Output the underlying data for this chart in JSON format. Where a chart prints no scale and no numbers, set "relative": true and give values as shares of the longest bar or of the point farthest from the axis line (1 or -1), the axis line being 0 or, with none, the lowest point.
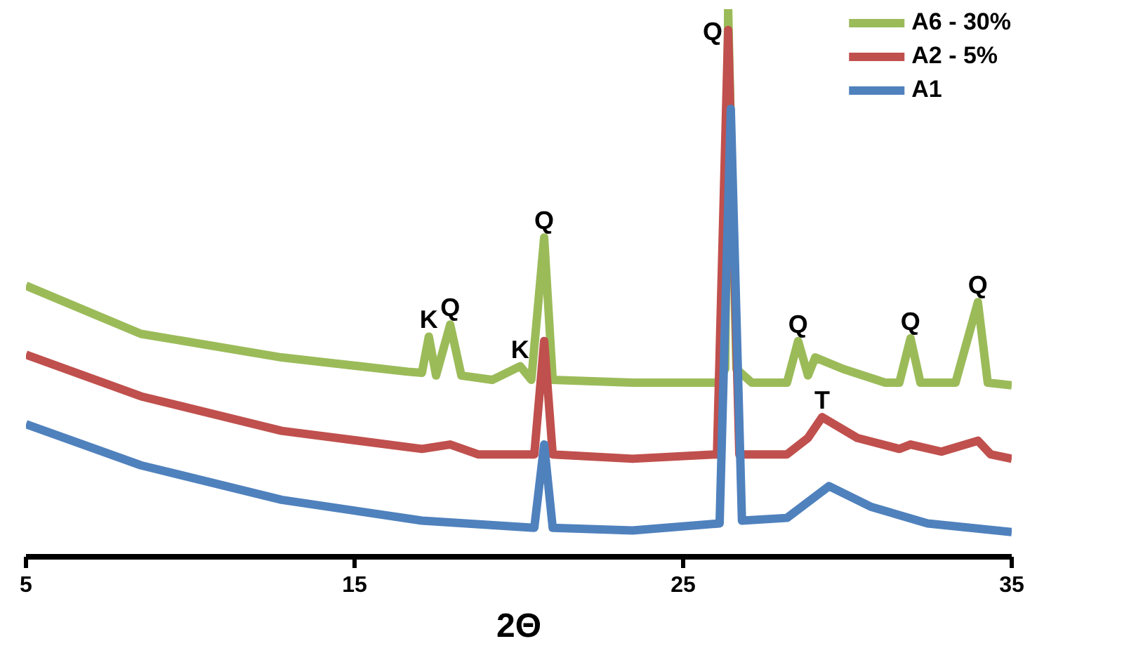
{
  "chart_data": {
    "type": "line",
    "relative": true,
    "xlabel": "2Θ",
    "xlim": [
      5,
      35
    ],
    "xticks": [
      5,
      15,
      25,
      35
    ],
    "grid": false,
    "legend": "top right",
    "marker": "none",
    "line_style": "solid",
    "series": [
      {
        "name": "A6 - 30%",
        "color": "#9bbb59",
        "x": [
          5,
          8.5,
          12.78,
          16.62,
          17.05,
          17.26,
          17.48,
          17.91,
          18.25,
          19.19,
          20.04,
          20.38,
          20.77,
          21.03,
          23.46,
          26.03,
          26.28,
          26.37,
          26.62,
          27.09,
          28.16,
          28.5,
          28.8,
          29.02,
          29.87,
          31.15,
          31.58,
          31.92,
          32.22,
          33.29,
          33.97,
          34.27,
          35
        ],
        "values": [
          0.495,
          0.407,
          0.364,
          0.338,
          0.336,
          0.402,
          0.331,
          0.424,
          0.331,
          0.323,
          0.348,
          0.323,
          0.583,
          0.323,
          0.318,
          0.318,
          0.343,
          1,
          0.343,
          0.318,
          0.318,
          0.394,
          0.331,
          0.364,
          0.343,
          0.318,
          0.318,
          0.399,
          0.318,
          0.318,
          0.465,
          0.318,
          0.313
        ]
      },
      {
        "name": "A2 - 5%",
        "color": "#c0504d",
        "x": [
          5,
          8.5,
          12.78,
          17.05,
          17.91,
          18.76,
          20.47,
          20.77,
          21.03,
          23.46,
          26.03,
          26.37,
          26.71,
          28.16,
          28.8,
          29.23,
          30.3,
          31.58,
          31.92,
          32.86,
          33.97,
          34.36,
          35
        ],
        "values": [
          0.369,
          0.293,
          0.23,
          0.197,
          0.205,
          0.187,
          0.187,
          0.394,
          0.187,
          0.179,
          0.187,
          0.962,
          0.187,
          0.187,
          0.217,
          0.255,
          0.217,
          0.197,
          0.205,
          0.192,
          0.212,
          0.187,
          0.179
        ]
      },
      {
        "name": "A1",
        "color": "#4f81bd",
        "x": [
          5,
          8.5,
          12.78,
          17.05,
          20.47,
          20.77,
          21.03,
          23.46,
          26.11,
          26.45,
          26.79,
          28.16,
          29.44,
          30.73,
          32.44,
          35
        ],
        "values": [
          0.242,
          0.167,
          0.104,
          0.066,
          0.053,
          0.205,
          0.053,
          0.048,
          0.061,
          0.818,
          0.066,
          0.071,
          0.129,
          0.091,
          0.061,
          0.045
        ]
      }
    ],
    "annotations": [
      {
        "text": "K",
        "x": 17.26,
        "y": 0.402
      },
      {
        "text": "Q",
        "x": 17.91,
        "y": 0.424
      },
      {
        "text": "K",
        "x": 20.04,
        "y": 0.348
      },
      {
        "text": "Q",
        "x": 20.77,
        "y": 0.583
      },
      {
        "text": "Q",
        "x": 26.37,
        "y": 1
      },
      {
        "text": "Q",
        "x": 28.5,
        "y": 0.394
      },
      {
        "text": "T",
        "x": 29.23,
        "y": 0.255
      },
      {
        "text": "Q",
        "x": 31.92,
        "y": 0.399
      },
      {
        "text": "Q",
        "x": 33.97,
        "y": 0.465
      }
    ]
  }
}
